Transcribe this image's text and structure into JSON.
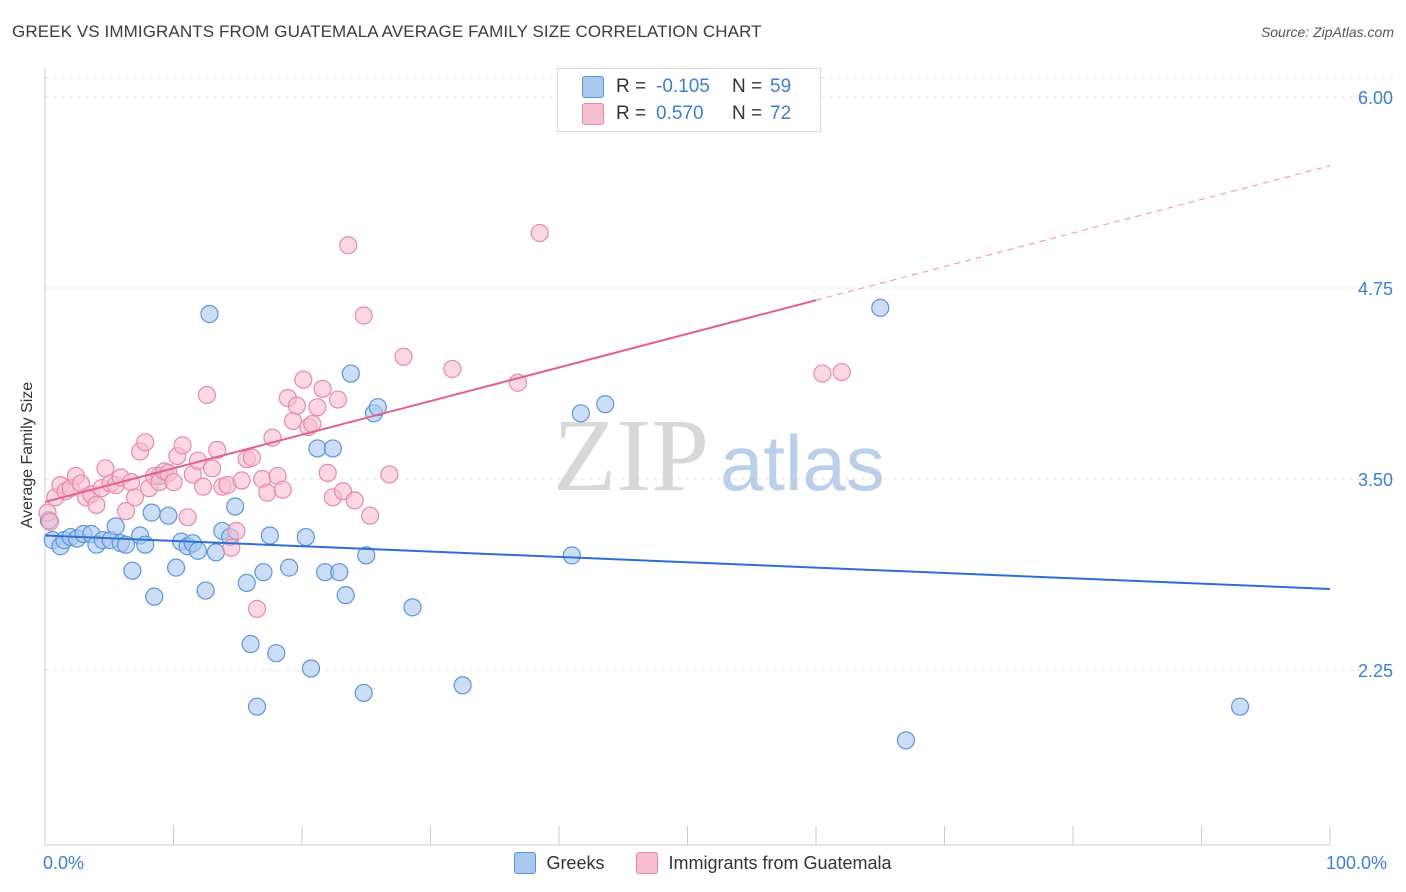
{
  "title": "GREEK VS IMMIGRANTS FROM GUATEMALA AVERAGE FAMILY SIZE CORRELATION CHART",
  "source": "Source: ZipAtlas.com",
  "watermark": {
    "zip": "ZIP",
    "atlas": "atlas"
  },
  "legend": {
    "row1": {
      "r_label": "R =",
      "r_value": "-0.105",
      "n_label": "N =",
      "n_value": "59"
    },
    "row2": {
      "r_label": "R =",
      "r_value": "0.570",
      "n_label": "N =",
      "n_value": "72"
    }
  },
  "bottom_legend": {
    "greeks": "Greeks",
    "guatemala": "Immigrants from Guatemala"
  },
  "x_labels": {
    "left": "0.0%",
    "right": "100.0%"
  },
  "colors": {
    "blue_fill": "#a9c8f0",
    "blue_stroke": "#5b95dc",
    "blue_line": "#2f6fcf",
    "pink_fill": "#f7bdd0",
    "pink_stroke": "#e889a8",
    "pink_line": "#e4608a",
    "axis_text": "#3d7fd0",
    "grid": "#e3e3e3"
  },
  "chart_data": {
    "type": "scatter",
    "title": "GREEK VS IMMIGRANTS FROM GUATEMALA AVERAGE FAMILY SIZE CORRELATION CHART",
    "xlabel": "",
    "ylabel": "Average Family Size",
    "xlim": [
      0,
      100
    ],
    "ylim": [
      1.3,
      6.2
    ],
    "y_ticks": [
      {
        "value": 2.25,
        "label": "2.25"
      },
      {
        "value": 3.5,
        "label": "3.50"
      },
      {
        "value": 4.75,
        "label": "4.75"
      },
      {
        "value": 6.0,
        "label": "6.00"
      }
    ],
    "x_tick_values": [
      0,
      10,
      20,
      30,
      40,
      50,
      60,
      70,
      80,
      90,
      100
    ],
    "series": [
      {
        "name": "Greeks",
        "r": -0.105,
        "n": 59,
        "trend": {
          "x": [
            0,
            100
          ],
          "y": [
            3.13,
            2.78
          ],
          "dashed_from": null
        },
        "points": [
          [
            0.3,
            3.23
          ],
          [
            0.6,
            3.1
          ],
          [
            1.2,
            3.06
          ],
          [
            1.5,
            3.1
          ],
          [
            2.0,
            3.12
          ],
          [
            2.5,
            3.11
          ],
          [
            3.0,
            3.14
          ],
          [
            3.6,
            3.14
          ],
          [
            4.0,
            3.07
          ],
          [
            4.5,
            3.1
          ],
          [
            5.1,
            3.1
          ],
          [
            5.5,
            3.19
          ],
          [
            5.9,
            3.08
          ],
          [
            6.3,
            3.07
          ],
          [
            6.8,
            2.9
          ],
          [
            7.4,
            3.13
          ],
          [
            7.8,
            3.07
          ],
          [
            8.3,
            3.28
          ],
          [
            8.5,
            2.73
          ],
          [
            8.9,
            3.52
          ],
          [
            9.6,
            3.26
          ],
          [
            10.2,
            2.92
          ],
          [
            10.6,
            3.09
          ],
          [
            11.1,
            3.06
          ],
          [
            11.5,
            3.08
          ],
          [
            11.9,
            3.03
          ],
          [
            12.5,
            2.77
          ],
          [
            12.8,
            4.58
          ],
          [
            13.3,
            3.02
          ],
          [
            13.8,
            3.16
          ],
          [
            14.4,
            3.12
          ],
          [
            14.8,
            3.32
          ],
          [
            15.7,
            2.82
          ],
          [
            16.0,
            2.42
          ],
          [
            16.5,
            2.01
          ],
          [
            17.0,
            2.89
          ],
          [
            17.5,
            3.13
          ],
          [
            18.0,
            2.36
          ],
          [
            19.0,
            2.92
          ],
          [
            20.3,
            3.12
          ],
          [
            20.7,
            2.26
          ],
          [
            21.2,
            3.7
          ],
          [
            21.8,
            2.89
          ],
          [
            22.4,
            3.7
          ],
          [
            22.9,
            2.89
          ],
          [
            23.4,
            2.74
          ],
          [
            23.8,
            4.19
          ],
          [
            24.8,
            2.1
          ],
          [
            25.0,
            3.0
          ],
          [
            25.6,
            3.93
          ],
          [
            25.9,
            3.97
          ],
          [
            28.6,
            2.66
          ],
          [
            32.5,
            2.15
          ],
          [
            41.0,
            3.0
          ],
          [
            41.7,
            3.93
          ],
          [
            43.6,
            3.99
          ],
          [
            65.0,
            4.62
          ],
          [
            67.0,
            1.79
          ],
          [
            93.0,
            2.01
          ]
        ]
      },
      {
        "name": "Immigrants from Guatemala",
        "r": 0.57,
        "n": 72,
        "trend": {
          "x": [
            0,
            100
          ],
          "y": [
            3.35,
            5.55
          ],
          "dashed_from": 60
        },
        "points": [
          [
            0.2,
            3.28
          ],
          [
            0.4,
            3.22
          ],
          [
            0.8,
            3.38
          ],
          [
            1.2,
            3.46
          ],
          [
            1.6,
            3.42
          ],
          [
            2.0,
            3.44
          ],
          [
            2.4,
            3.52
          ],
          [
            2.8,
            3.47
          ],
          [
            3.2,
            3.38
          ],
          [
            3.6,
            3.4
          ],
          [
            4.0,
            3.33
          ],
          [
            4.4,
            3.44
          ],
          [
            4.7,
            3.57
          ],
          [
            5.1,
            3.47
          ],
          [
            5.5,
            3.46
          ],
          [
            5.9,
            3.51
          ],
          [
            6.3,
            3.29
          ],
          [
            6.7,
            3.48
          ],
          [
            7.0,
            3.38
          ],
          [
            7.4,
            3.68
          ],
          [
            7.8,
            3.74
          ],
          [
            8.1,
            3.44
          ],
          [
            8.5,
            3.52
          ],
          [
            8.9,
            3.48
          ],
          [
            9.3,
            3.55
          ],
          [
            9.6,
            3.54
          ],
          [
            10.0,
            3.48
          ],
          [
            10.3,
            3.65
          ],
          [
            10.7,
            3.72
          ],
          [
            11.1,
            3.25
          ],
          [
            11.5,
            3.53
          ],
          [
            11.9,
            3.62
          ],
          [
            12.3,
            3.45
          ],
          [
            12.6,
            4.05
          ],
          [
            13.0,
            3.57
          ],
          [
            13.4,
            3.69
          ],
          [
            13.8,
            3.45
          ],
          [
            14.2,
            3.46
          ],
          [
            14.5,
            3.05
          ],
          [
            14.9,
            3.16
          ],
          [
            15.3,
            3.49
          ],
          [
            15.7,
            3.63
          ],
          [
            16.1,
            3.64
          ],
          [
            16.5,
            2.65
          ],
          [
            16.9,
            3.5
          ],
          [
            17.3,
            3.41
          ],
          [
            17.7,
            3.77
          ],
          [
            18.1,
            3.52
          ],
          [
            18.5,
            3.43
          ],
          [
            18.9,
            4.03
          ],
          [
            19.3,
            3.88
          ],
          [
            19.6,
            3.98
          ],
          [
            20.1,
            4.15
          ],
          [
            20.5,
            3.84
          ],
          [
            20.8,
            3.86
          ],
          [
            21.2,
            3.97
          ],
          [
            21.6,
            4.09
          ],
          [
            22.0,
            3.54
          ],
          [
            22.4,
            3.38
          ],
          [
            22.8,
            4.02
          ],
          [
            23.2,
            3.42
          ],
          [
            23.6,
            5.03
          ],
          [
            24.1,
            3.36
          ],
          [
            24.8,
            4.57
          ],
          [
            25.3,
            3.26
          ],
          [
            26.8,
            3.53
          ],
          [
            27.9,
            4.3
          ],
          [
            31.7,
            4.22
          ],
          [
            36.8,
            4.13
          ],
          [
            38.5,
            5.11
          ],
          [
            60.5,
            4.19
          ],
          [
            62.0,
            4.2
          ]
        ]
      }
    ]
  }
}
